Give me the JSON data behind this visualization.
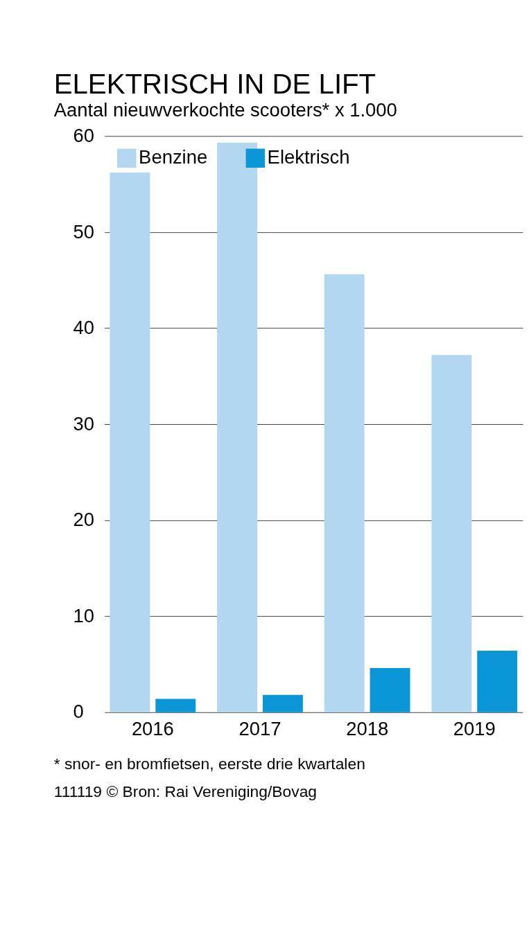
{
  "chart_data": {
    "type": "bar",
    "title": "ELEKTRISCH IN DE LIFT",
    "subtitle": "Aantal nieuwverkochte scooters* x 1.000",
    "categories": [
      "2016",
      "2017",
      "2018",
      "2019"
    ],
    "series": [
      {
        "name": "Benzine",
        "color": "#b3d7f0",
        "values": [
          56.2,
          59.3,
          45.6,
          37.2
        ]
      },
      {
        "name": "Elektrisch",
        "color": "#0a96d7",
        "values": [
          1.4,
          1.8,
          4.6,
          6.4
        ]
      }
    ],
    "ylim": [
      0,
      60
    ],
    "yticks": [
      0,
      10,
      20,
      30,
      40,
      50,
      60
    ],
    "grid": "y",
    "legend": "top left",
    "annotations": [
      "* snor- en bromfietsen, eerste drie kwartalen",
      "111119 © Bron: Rai Vereniging/Bovag"
    ]
  }
}
